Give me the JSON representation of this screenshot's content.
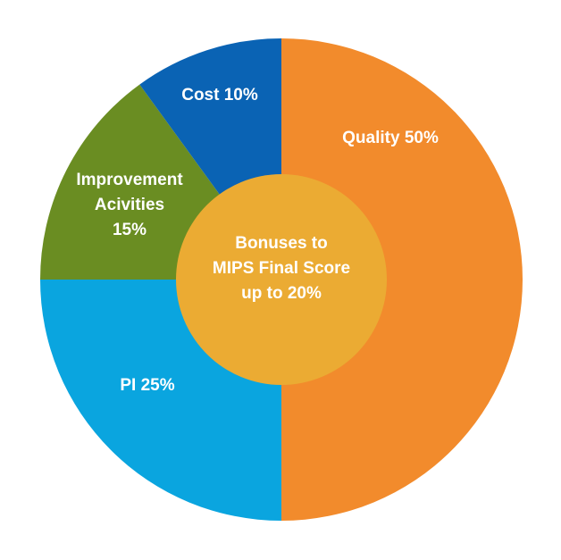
{
  "chart_data": {
    "type": "pie",
    "categories": [
      [
        "Quality 50%"
      ],
      [
        "PI 25%"
      ],
      [
        "Improvement",
        "Acivities",
        "15%"
      ],
      [
        "Cost 10%"
      ]
    ],
    "values": [
      50,
      25,
      15,
      10
    ],
    "colors": [
      "#f28b2c",
      "#0aa5df",
      "#6a8d22",
      "#0a63b4"
    ],
    "center_label": [
      "Bonuses to",
      "MIPS Final Score",
      "up to 20%"
    ],
    "center_color": "#ebab33"
  }
}
